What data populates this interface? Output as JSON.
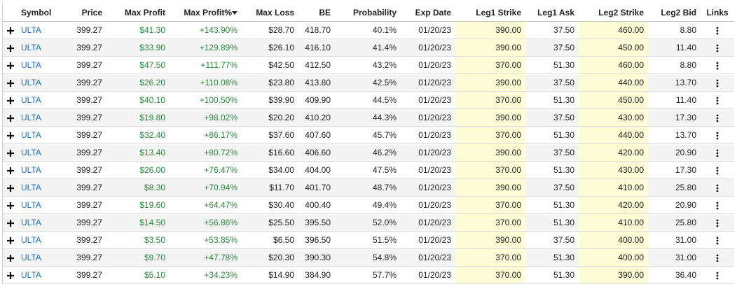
{
  "table": {
    "headers": [
      "Symbol",
      "Price",
      "Max Profit",
      "Max Profit%",
      "Max Loss",
      "BE",
      "Probability",
      "Exp Date",
      "Leg1 Strike",
      "Leg1 Ask",
      "Leg2 Strike",
      "Leg2 Bid",
      "Links"
    ],
    "rows": [
      [
        "ULTA",
        "399.27",
        "$41.30",
        "+143.90%",
        "$28.70",
        "418.70",
        "40.1%",
        "01/20/23",
        "390.00",
        "37.50",
        "460.00",
        "8.80"
      ],
      [
        "ULTA",
        "399.27",
        "$33.90",
        "+129.89%",
        "$26.10",
        "416.10",
        "41.4%",
        "01/20/23",
        "390.00",
        "37.50",
        "450.00",
        "11.40"
      ],
      [
        "ULTA",
        "399.27",
        "$47.50",
        "+111.77%",
        "$42.50",
        "412.50",
        "43.2%",
        "01/20/23",
        "370.00",
        "51.30",
        "460.00",
        "8.80"
      ],
      [
        "ULTA",
        "399.27",
        "$26.20",
        "+110.08%",
        "$23.80",
        "413.80",
        "42.5%",
        "01/20/23",
        "390.00",
        "37.50",
        "440.00",
        "13.70"
      ],
      [
        "ULTA",
        "399.27",
        "$40.10",
        "+100.50%",
        "$39.90",
        "409.90",
        "44.5%",
        "01/20/23",
        "370.00",
        "51.30",
        "450.00",
        "11.40"
      ],
      [
        "ULTA",
        "399.27",
        "$19.80",
        "+98.02%",
        "$20.20",
        "410.20",
        "44.3%",
        "01/20/23",
        "390.00",
        "37.50",
        "430.00",
        "17.30"
      ],
      [
        "ULTA",
        "399.27",
        "$32.40",
        "+86.17%",
        "$37.60",
        "407.60",
        "45.7%",
        "01/20/23",
        "370.00",
        "51.30",
        "440.00",
        "13.70"
      ],
      [
        "ULTA",
        "399.27",
        "$13.40",
        "+80.72%",
        "$16.60",
        "406.60",
        "46.2%",
        "01/20/23",
        "390.00",
        "37.50",
        "420.00",
        "20.90"
      ],
      [
        "ULTA",
        "399.27",
        "$26.00",
        "+76.47%",
        "$34.00",
        "404.00",
        "47.5%",
        "01/20/23",
        "370.00",
        "51.30",
        "430.00",
        "17.30"
      ],
      [
        "ULTA",
        "399.27",
        "$8.30",
        "+70.94%",
        "$11.70",
        "401.70",
        "48.7%",
        "01/20/23",
        "390.00",
        "37.50",
        "410.00",
        "25.80"
      ],
      [
        "ULTA",
        "399.27",
        "$19.60",
        "+64.47%",
        "$30.40",
        "400.40",
        "49.4%",
        "01/20/23",
        "370.00",
        "51.30",
        "420.00",
        "20.90"
      ],
      [
        "ULTA",
        "399.27",
        "$14.50",
        "+56.86%",
        "$25.50",
        "395.50",
        "52.0%",
        "01/20/23",
        "370.00",
        "51.30",
        "410.00",
        "25.80"
      ],
      [
        "ULTA",
        "399.27",
        "$3.50",
        "+53.85%",
        "$6.50",
        "396.50",
        "51.5%",
        "01/20/23",
        "390.00",
        "37.50",
        "400.00",
        "31.00"
      ],
      [
        "ULTA",
        "399.27",
        "$9.70",
        "+47.78%",
        "$20.30",
        "390.30",
        "54.8%",
        "01/20/23",
        "370.00",
        "51.30",
        "400.00",
        "31.00"
      ],
      [
        "ULTA",
        "399.27",
        "$5.10",
        "+34.23%",
        "$14.90",
        "384.90",
        "57.7%",
        "01/20/23",
        "370.00",
        "51.30",
        "390.00",
        "36.40"
      ]
    ]
  }
}
